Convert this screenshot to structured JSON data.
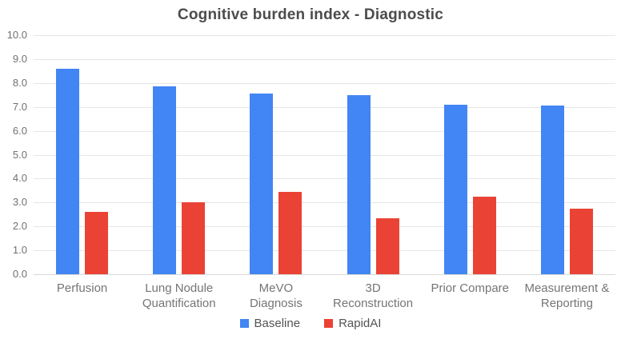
{
  "chart_data": {
    "type": "bar",
    "title": "Cognitive burden index - Diagnostic",
    "categories": [
      "Perfusion",
      "Lung Nodule Quantification",
      "MeVO Diagnosis",
      "3D Reconstruction",
      "Prior Compare",
      "Measurement & Reporting"
    ],
    "category_label_lines": [
      [
        "Perfusion"
      ],
      [
        "Lung Nodule",
        "Quantification"
      ],
      [
        "MeVO",
        "Diagnosis"
      ],
      [
        "3D",
        "Reconstruction"
      ],
      [
        "Prior Compare"
      ],
      [
        "Measurement &",
        "Reporting"
      ]
    ],
    "series": [
      {
        "name": "Baseline",
        "color": "#4285f4",
        "values": [
          8.6,
          7.85,
          7.55,
          7.5,
          7.1,
          7.05
        ]
      },
      {
        "name": "RapidAI",
        "color": "#ea4335",
        "values": [
          2.6,
          3.0,
          3.45,
          2.35,
          3.25,
          2.75
        ]
      }
    ],
    "xlabel": "",
    "ylabel": "",
    "ylim": [
      0,
      10
    ],
    "y_tick_labels": [
      "10.0",
      "9.0",
      "8.0",
      "7.0",
      "6.0",
      "5.0",
      "4.0",
      "3.0",
      "2.0",
      "1.0",
      "0.0"
    ],
    "grid": true,
    "legend_position": "bottom"
  },
  "colors": {
    "background": "#ffffff",
    "gridline": "#e6e6e6",
    "title_text": "#4c4c4c",
    "axis_text": "#717171",
    "category_text": "#757575",
    "legend_text": "#545454"
  }
}
